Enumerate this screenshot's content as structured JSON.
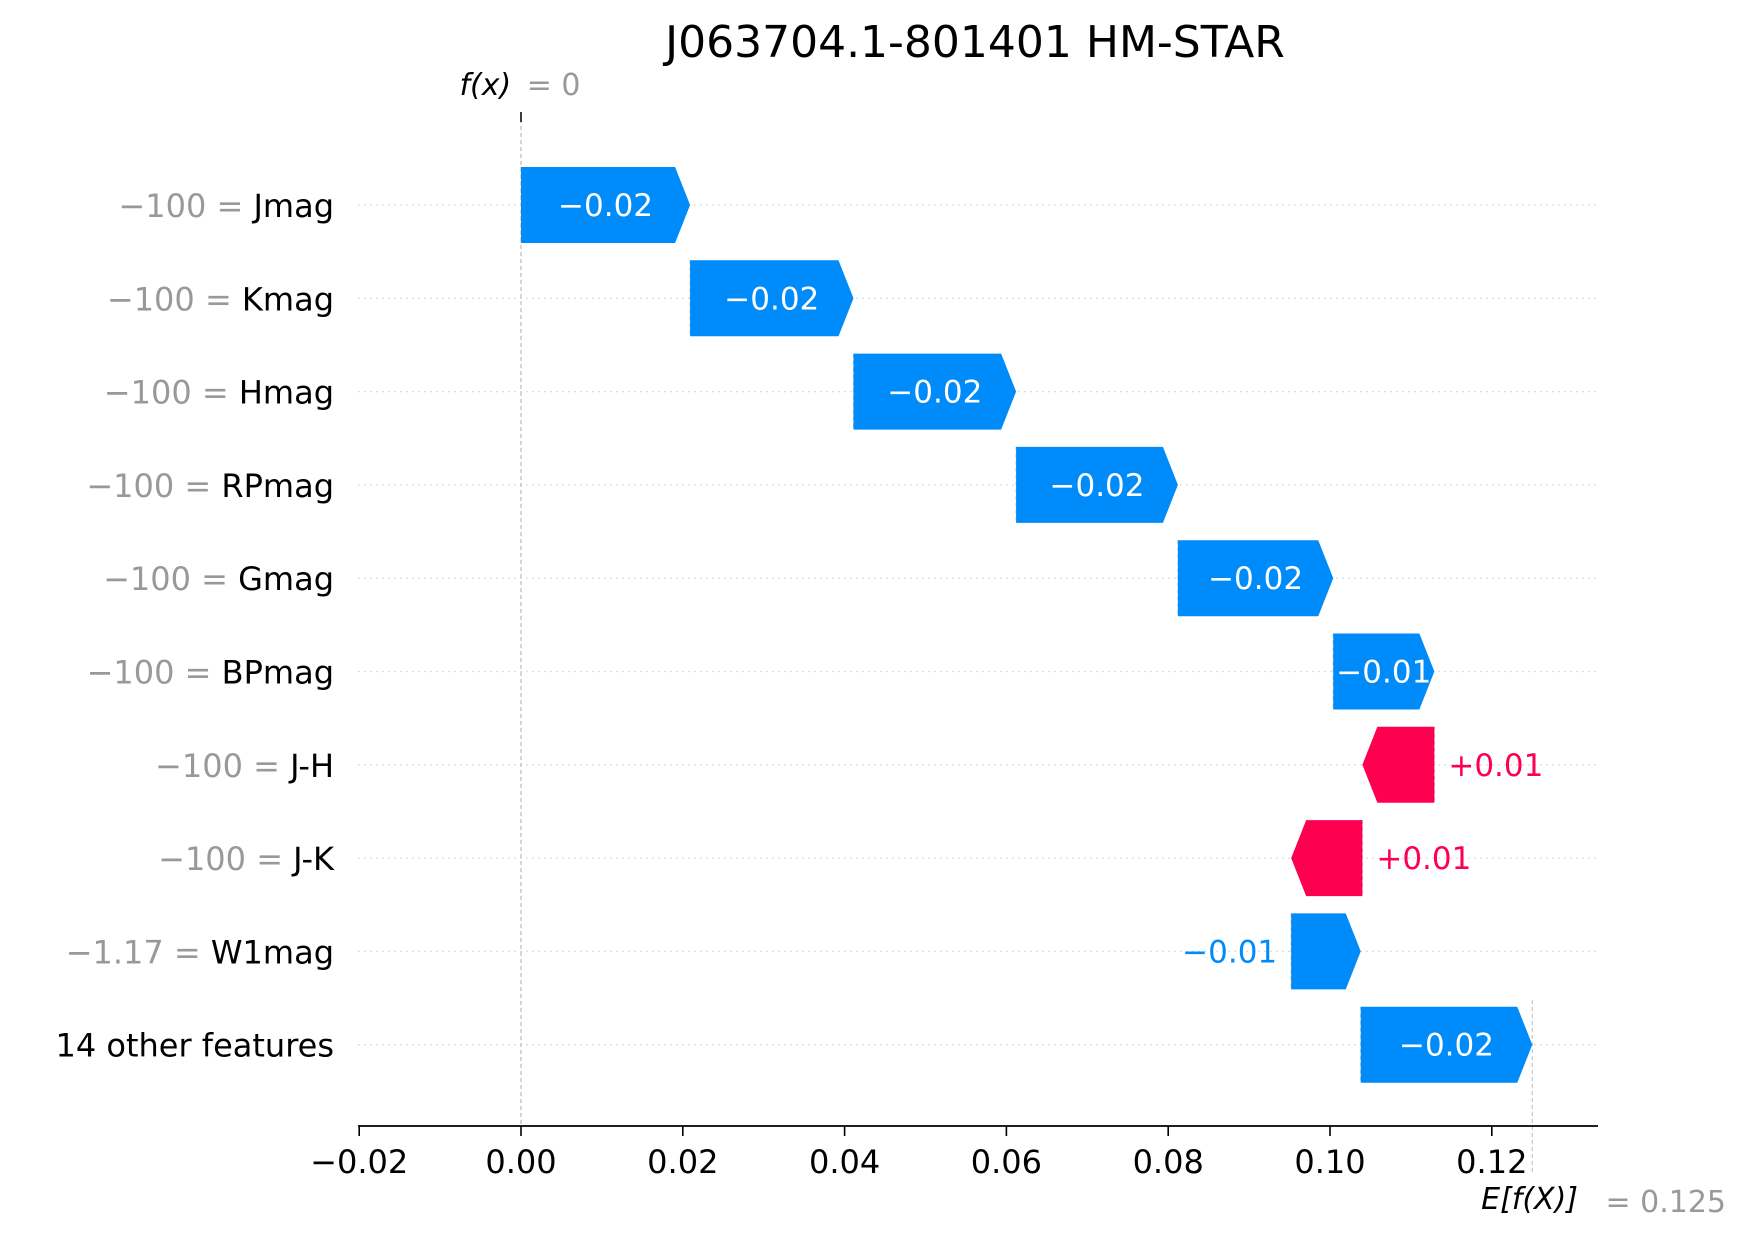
{
  "colors": {
    "negative": "#008bfb",
    "positive": "#ff0051",
    "muted": "#999999"
  },
  "chart_data": {
    "type": "waterfall",
    "title": "J063704.1-801401 HM-STAR",
    "fx": {
      "label_func": "f(x)",
      "label_eq": "= 0",
      "value": 0
    },
    "base": {
      "label": "E[f(X)]",
      "label_eq": "= 0.125",
      "value": 0.125
    },
    "xlim": [
      -0.02,
      0.13
    ],
    "xticks": [
      -0.02,
      0.0,
      0.02,
      0.04,
      0.06,
      0.08,
      0.1,
      0.12
    ],
    "xtick_labels": [
      "−0.02",
      "0.00",
      "0.02",
      "0.04",
      "0.06",
      "0.08",
      "0.10",
      "0.12"
    ],
    "features": [
      {
        "value_text": "−100",
        "name": "Jmag",
        "start": 0.0,
        "end": 0.0209,
        "label": "−0.02",
        "sign": -1
      },
      {
        "value_text": "−100",
        "name": "Kmag",
        "start": 0.0209,
        "end": 0.0411,
        "label": "−0.02",
        "sign": -1
      },
      {
        "value_text": "−100",
        "name": "Hmag",
        "start": 0.0411,
        "end": 0.0612,
        "label": "−0.02",
        "sign": -1
      },
      {
        "value_text": "−100",
        "name": "RPmag",
        "start": 0.0612,
        "end": 0.0812,
        "label": "−0.02",
        "sign": -1
      },
      {
        "value_text": "−100",
        "name": "Gmag",
        "start": 0.0812,
        "end": 0.1004,
        "label": "−0.02",
        "sign": -1
      },
      {
        "value_text": "−100",
        "name": "BPmag",
        "start": 0.1004,
        "end": 0.1129,
        "label": "−0.01",
        "sign": -1
      },
      {
        "value_text": "−100",
        "name": "J-H",
        "start": 0.1129,
        "end": 0.104,
        "label": "+0.01",
        "sign": 1
      },
      {
        "value_text": "−100",
        "name": "J-K",
        "start": 0.104,
        "end": 0.0952,
        "label": "+0.01",
        "sign": 1
      },
      {
        "value_text": "−1.17",
        "name": "W1mag",
        "start": 0.0952,
        "end": 0.1038,
        "label": "−0.01",
        "sign": -1
      },
      {
        "value_text": "",
        "name": "14 other features",
        "start": 0.1038,
        "end": 0.125,
        "label": "−0.02",
        "sign": -1
      }
    ]
  }
}
